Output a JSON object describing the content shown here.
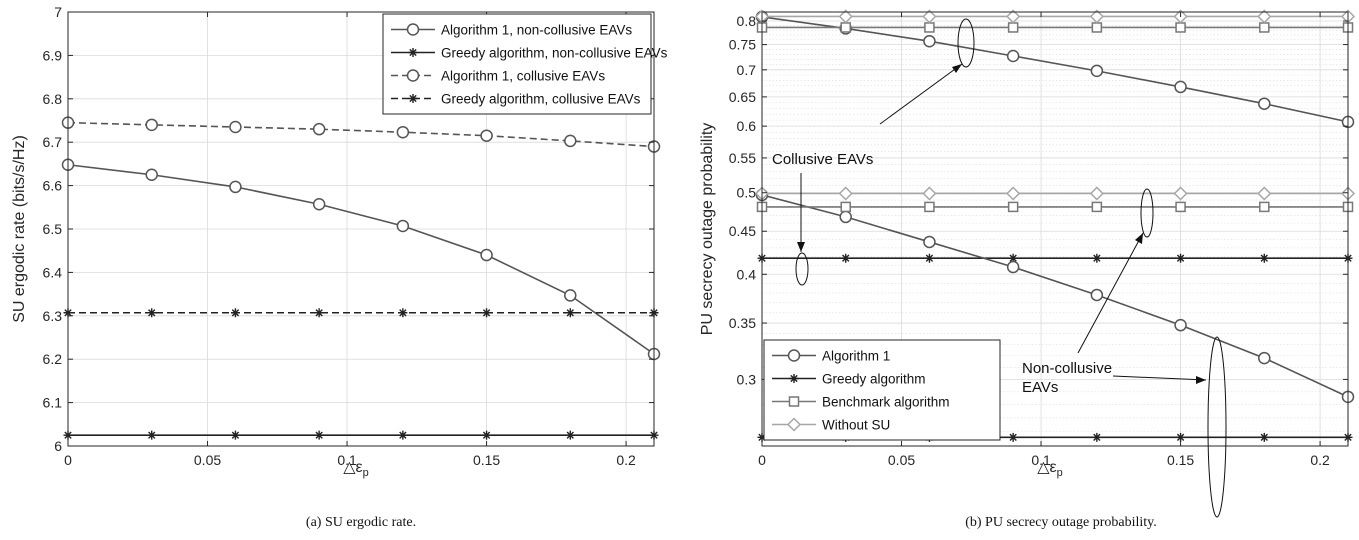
{
  "chart_data": [
    {
      "type": "line",
      "caption": "(a) SU ergodic rate.",
      "xlabel": "△ε",
      "xlabel_sub": "p",
      "ylabel": "SU ergodic rate (bits/s/Hz)",
      "xlim": [
        0,
        0.21
      ],
      "ylim": [
        6,
        7
      ],
      "grid": true,
      "legend_position": "top-right",
      "x": [
        0,
        0.03,
        0.06,
        0.09,
        0.12,
        0.15,
        0.18,
        0.21
      ],
      "xticks": [
        0,
        0.05,
        0.1,
        0.15,
        0.2
      ],
      "xtick_labels": [
        "0",
        "0.05",
        "0.1",
        "0.15",
        "0.2"
      ],
      "yticks": [
        6,
        6.1,
        6.2,
        6.3,
        6.4,
        6.5,
        6.6,
        6.7,
        6.8,
        6.9,
        7
      ],
      "ytick_labels": [
        "6",
        "6.1",
        "6.2",
        "6.3",
        "6.4",
        "6.5",
        "6.6",
        "6.7",
        "6.8",
        "6.9",
        "7"
      ],
      "series": [
        {
          "name": "Algorithm 1, non-collusive EAVs",
          "marker": "circle",
          "dash": "solid",
          "color": "#555555",
          "values": [
            6.648,
            6.625,
            6.597,
            6.557,
            6.507,
            6.44,
            6.347,
            6.212
          ]
        },
        {
          "name": "Greedy algorithm, non-collusive EAVs",
          "marker": "star",
          "dash": "solid",
          "color": "#222222",
          "values": [
            6.025,
            6.025,
            6.025,
            6.025,
            6.025,
            6.025,
            6.025,
            6.025
          ]
        },
        {
          "name": "Algorithm 1, collusive EAVs",
          "marker": "circle",
          "dash": "dashed",
          "color": "#555555",
          "values": [
            6.745,
            6.74,
            6.735,
            6.73,
            6.723,
            6.715,
            6.703,
            6.69
          ]
        },
        {
          "name": "Greedy algorithm, collusive EAVs",
          "marker": "star",
          "dash": "dashed",
          "color": "#222222",
          "values": [
            6.307,
            6.307,
            6.307,
            6.307,
            6.307,
            6.307,
            6.307,
            6.307
          ]
        }
      ]
    },
    {
      "type": "line",
      "caption": "(b) PU secrecy outage probability.",
      "xlabel": "△ε",
      "xlabel_sub": "p",
      "ylabel": "PU secrecy outage probability",
      "xlim": [
        0,
        0.21
      ],
      "ylim": [
        0.25,
        0.82
      ],
      "yscale": "log",
      "grid": true,
      "legend_position": "bottom-left",
      "x": [
        0,
        0.03,
        0.06,
        0.09,
        0.12,
        0.15,
        0.18,
        0.21
      ],
      "xticks": [
        0,
        0.05,
        0.1,
        0.15,
        0.2
      ],
      "xtick_labels": [
        "0",
        "0.05",
        "0.1",
        "0.15",
        "0.2"
      ],
      "yticks": [
        0.3,
        0.35,
        0.4,
        0.45,
        0.5,
        0.55,
        0.6,
        0.65,
        0.7,
        0.75,
        0.8
      ],
      "ytick_labels": [
        "0.3",
        "0.35",
        "0.4",
        "0.45",
        "0.5",
        "0.55",
        "0.6",
        "0.65",
        "0.7",
        "0.75",
        "0.8"
      ],
      "series": [
        {
          "name": "Algorithm 1",
          "marker": "circle",
          "color": "#555555",
          "values": [
            0.809,
            0.784,
            0.757,
            0.727,
            0.698,
            0.668,
            0.638,
            0.607
          ]
        },
        {
          "name": "Greedy algorithm",
          "marker": "star",
          "color": "#222222",
          "values": [
            0.418,
            0.418,
            0.418,
            0.418,
            0.418,
            0.418,
            0.418,
            0.418
          ]
        },
        {
          "name": "Benchmark algorithm",
          "marker": "square",
          "color": "#777777",
          "values": [
            0.786,
            0.786,
            0.786,
            0.786,
            0.786,
            0.786,
            0.786,
            0.786
          ]
        },
        {
          "name": "Without SU",
          "marker": "diamond",
          "color": "#a6a6a6",
          "values": [
            0.81,
            0.81,
            0.81,
            0.81,
            0.81,
            0.81,
            0.81,
            0.81
          ]
        },
        {
          "name": "",
          "marker": "circle",
          "color": "#555555",
          "values": [
            0.497,
            0.468,
            0.437,
            0.408,
            0.378,
            0.348,
            0.318,
            0.286
          ]
        },
        {
          "name": "",
          "marker": "star",
          "color": "#222222",
          "values": [
            0.256,
            0.256,
            0.256,
            0.256,
            0.256,
            0.256,
            0.256,
            0.256
          ]
        },
        {
          "name": "",
          "marker": "square",
          "color": "#777777",
          "values": [
            0.481,
            0.481,
            0.481,
            0.481,
            0.481,
            0.481,
            0.481,
            0.481
          ]
        },
        {
          "name": "",
          "marker": "diamond",
          "color": "#a6a6a6",
          "values": [
            0.499,
            0.499,
            0.499,
            0.499,
            0.499,
            0.499,
            0.499,
            0.499
          ]
        }
      ],
      "annotations": [
        {
          "text": "Collusive EAVs",
          "lines": [
            "Collusive EAVs"
          ]
        },
        {
          "text": "Non-collusive EAVs",
          "lines": [
            "Non-collusive",
            "EAVs"
          ]
        }
      ]
    }
  ]
}
